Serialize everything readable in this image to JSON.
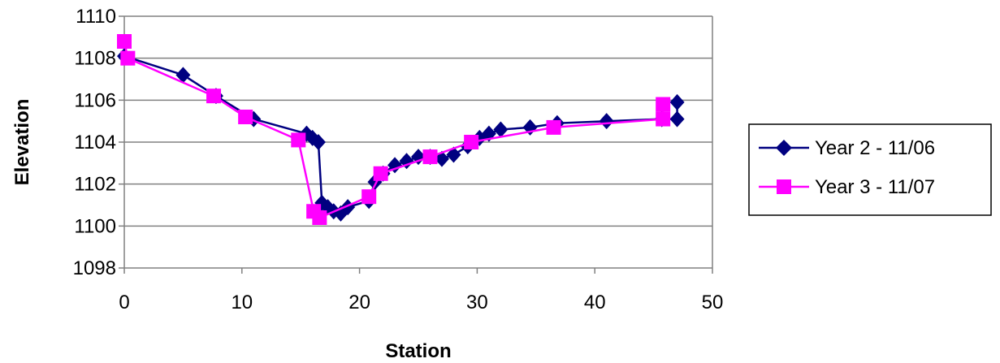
{
  "chart_data": {
    "type": "line",
    "xlabel": "Station",
    "ylabel": "Elevation",
    "xlim": [
      0,
      50
    ],
    "ylim": [
      1098,
      1110
    ],
    "x_ticks": [
      "0",
      "10",
      "20",
      "30",
      "40",
      "50"
    ],
    "y_ticks": [
      "1098",
      "1100",
      "1102",
      "1104",
      "1106",
      "1108",
      "1110"
    ],
    "grid": "horizontal",
    "legend_position": "right",
    "series": [
      {
        "name": "Year 2 - 11/06",
        "color": "#000080",
        "marker": "diamond",
        "points": [
          [
            0,
            1108.1
          ],
          [
            5,
            1107.2
          ],
          [
            7.8,
            1106.2
          ],
          [
            11,
            1105.1
          ],
          [
            15.5,
            1104.4
          ],
          [
            16,
            1104.2
          ],
          [
            16.5,
            1104.0
          ],
          [
            16.8,
            1101.1
          ],
          [
            17.3,
            1100.9
          ],
          [
            17.8,
            1100.7
          ],
          [
            18.4,
            1100.6
          ],
          [
            19,
            1100.9
          ],
          [
            20.8,
            1101.2
          ],
          [
            21.3,
            1102.1
          ],
          [
            22,
            1102.5
          ],
          [
            23,
            1102.9
          ],
          [
            24,
            1103.1
          ],
          [
            25,
            1103.3
          ],
          [
            26,
            1103.3
          ],
          [
            27,
            1103.2
          ],
          [
            28,
            1103.4
          ],
          [
            29.2,
            1103.8
          ],
          [
            30.2,
            1104.2
          ],
          [
            31,
            1104.4
          ],
          [
            32,
            1104.6
          ],
          [
            34.5,
            1104.7
          ],
          [
            36.8,
            1104.9
          ],
          [
            41,
            1105.0
          ],
          [
            45.7,
            1105.1
          ],
          [
            47,
            1105.1
          ],
          [
            47,
            1105.9
          ]
        ]
      },
      {
        "name": "Year 3 - 11/07",
        "color": "#FF00FF",
        "marker": "square",
        "points": [
          [
            0,
            1108.8
          ],
          [
            0.3,
            1108.0
          ],
          [
            7.6,
            1106.2
          ],
          [
            10.3,
            1105.2
          ],
          [
            14.8,
            1104.1
          ],
          [
            16.1,
            1100.7
          ],
          [
            16.6,
            1100.4
          ],
          [
            20.8,
            1101.4
          ],
          [
            21.8,
            1102.5
          ],
          [
            26,
            1103.3
          ],
          [
            29.5,
            1104.0
          ],
          [
            36.5,
            1104.7
          ],
          [
            45.8,
            1105.1
          ],
          [
            45.8,
            1105.8
          ]
        ]
      }
    ]
  }
}
